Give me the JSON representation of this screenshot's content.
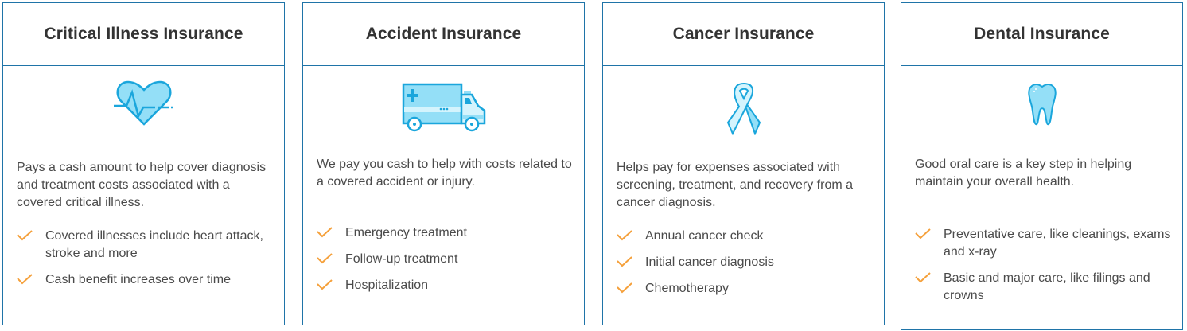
{
  "colors": {
    "border": "#1f74a8",
    "icon_stroke": "#1aa6dc",
    "icon_fill": "#94dff7",
    "check": "#f5a03a"
  },
  "cards": [
    {
      "title": "Critical Illness Insurance",
      "icon": "heartbeat-icon",
      "description": "Pays a cash amount to help cover diagnosis and treatment costs associated with a covered critical illness.",
      "features": [
        "Covered illnesses include heart attack, stroke and more",
        "Cash benefit increases over time"
      ]
    },
    {
      "title": "Accident Insurance",
      "icon": "ambulance-icon",
      "description": "We pay you cash to help with costs related to a covered accident or injury.",
      "features": [
        "Emergency treatment",
        "Follow-up treatment",
        "Hospitalization"
      ]
    },
    {
      "title": "Cancer Insurance",
      "icon": "awareness-ribbon-icon",
      "description": "Helps pay for expenses associated with screening, treatment, and recovery from a cancer diagnosis.",
      "features": [
        "Annual cancer check",
        "Initial cancer diagnosis",
        "Chemotherapy"
      ]
    },
    {
      "title": "Dental Insurance",
      "icon": "tooth-icon",
      "description": "Good oral care is a key step in helping maintain your overall health.",
      "features": [
        "Preventative care, like cleanings, exams and x-ray",
        "Basic and major care, like filings and crowns"
      ]
    }
  ]
}
